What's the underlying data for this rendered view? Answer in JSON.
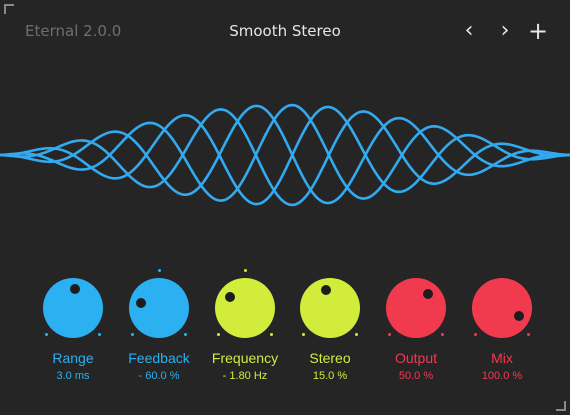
{
  "header": {
    "version": "Eternal 2.0.0",
    "preset_name": "Smooth Stereo",
    "prev_glyph": "‹",
    "next_glyph": "›",
    "add_glyph": "+"
  },
  "wave": {
    "color": "#33aaf0"
  },
  "knobs": [
    {
      "label": "Range",
      "value": "3.0 ms",
      "color": "#2bb0f2",
      "value_fraction": 0.52
    },
    {
      "label": "Feedback",
      "value": "- 60.0 %",
      "color": "#2bb0f2",
      "value_fraction": 0.22
    },
    {
      "label": "Frequency",
      "value": "- 1.80 Hz",
      "color": "#d2ec3c",
      "value_fraction": 0.3
    },
    {
      "label": "Stereo",
      "value": "15.0 %",
      "color": "#d2ec3c",
      "value_fraction": 0.45
    },
    {
      "label": "Output",
      "value": "50.0 %",
      "color": "#f23a4f",
      "value_fraction": 0.65
    },
    {
      "label": "Mix",
      "value": "100.0 %",
      "color": "#f23a4f",
      "value_fraction": 0.92
    }
  ]
}
